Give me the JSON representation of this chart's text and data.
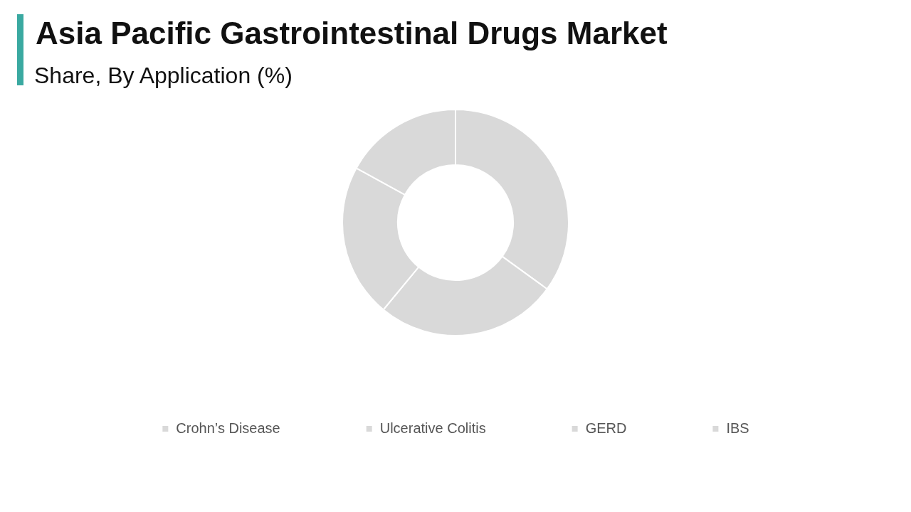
{
  "chart_data": {
    "type": "donut",
    "title": "Asia Pacific Gastrointestinal Drugs Market",
    "subtitle": "Share, By Application (%)",
    "categories": [
      "Crohn’s Disease",
      "Ulcerative Colitis",
      "GERD",
      "IBS"
    ],
    "values": [
      35,
      26,
      22,
      17
    ],
    "colors": [
      "#d9d9d9",
      "#d9d9d9",
      "#d9d9d9",
      "#d9d9d9"
    ],
    "legend": "bottom"
  }
}
